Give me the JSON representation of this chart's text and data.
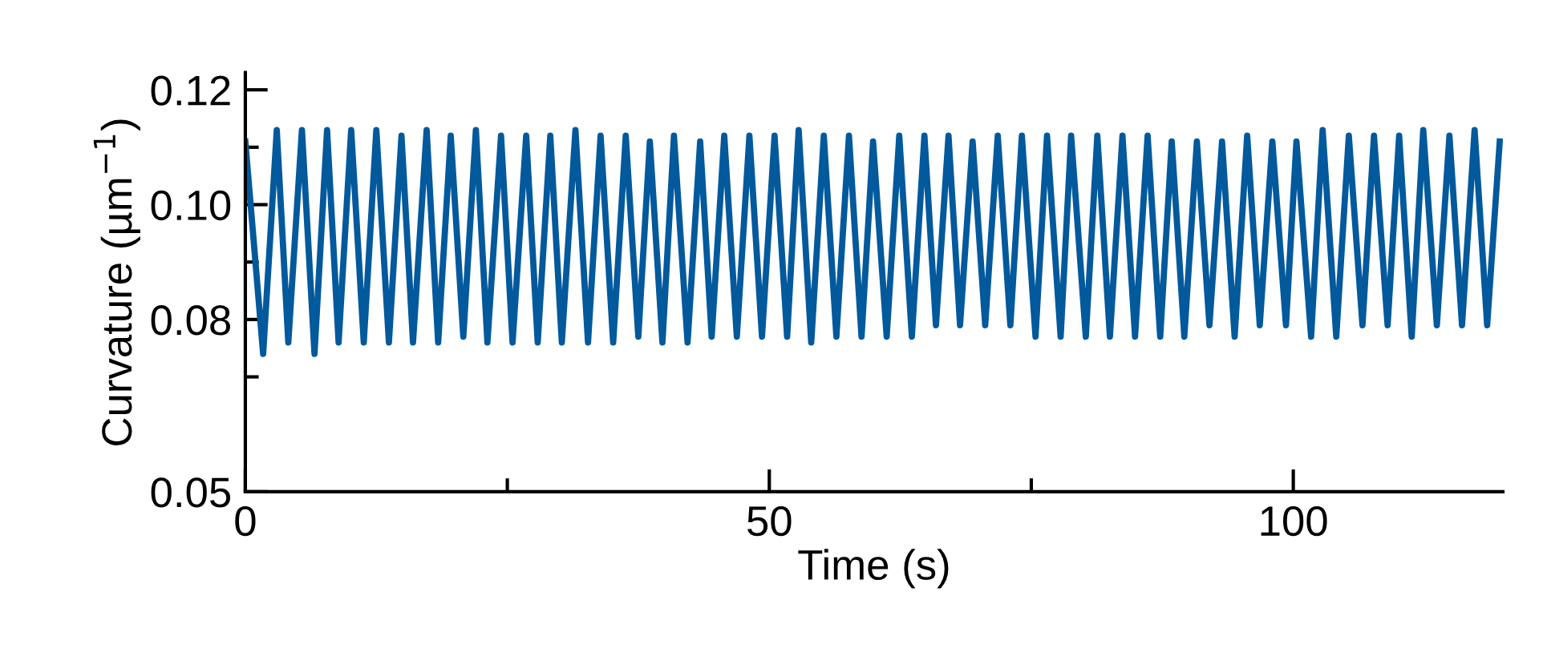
{
  "chart_data": {
    "type": "line",
    "xlabel": "Time (s)",
    "ylabel": "Curvature (µm$^{−1}$)",
    "x": [
      0,
      1.7,
      3.0,
      4.1,
      5.4,
      6.6,
      7.8,
      8.9,
      10.1,
      11.3,
      12.5,
      13.7,
      14.9,
      16.0,
      17.3,
      18.4,
      19.6,
      20.8,
      22.0,
      23.1,
      24.4,
      25.5,
      26.8,
      27.9,
      29.1,
      30.2,
      31.5,
      32.7,
      33.9,
      35.1,
      36.3,
      37.5,
      38.6,
      39.8,
      40.9,
      42.2,
      43.4,
      44.5,
      45.7,
      46.9,
      48.1,
      49.3,
      50.5,
      51.7,
      52.8,
      54.0,
      55.2,
      56.4,
      57.6,
      58.8,
      59.9,
      61.2,
      62.4,
      63.6,
      64.8,
      65.9,
      67.1,
      68.2,
      69.4,
      70.6,
      71.8,
      73.0,
      74.1,
      75.4,
      76.5,
      77.8,
      78.8,
      80.2,
      81.3,
      82.5,
      83.7,
      84.9,
      86.1,
      87.3,
      88.4,
      89.6,
      90.8,
      92.0,
      93.2,
      94.4,
      95.6,
      96.8,
      98.0,
      99.3,
      100.3,
      101.7,
      102.8,
      104.1,
      105.3,
      106.6,
      107.7,
      109.0,
      110.1,
      111.3,
      112.4,
      113.7,
      114.9,
      116.1,
      117.3,
      118.5,
      119.7
    ],
    "series": [
      {
        "color": "#02599c",
        "values": [
          0.111,
          0.074,
          0.113,
          0.076,
          0.113,
          0.074,
          0.113,
          0.076,
          0.113,
          0.076,
          0.113,
          0.076,
          0.112,
          0.076,
          0.113,
          0.076,
          0.112,
          0.077,
          0.113,
          0.076,
          0.112,
          0.076,
          0.112,
          0.076,
          0.112,
          0.076,
          0.113,
          0.076,
          0.112,
          0.076,
          0.112,
          0.077,
          0.111,
          0.076,
          0.112,
          0.076,
          0.111,
          0.077,
          0.112,
          0.077,
          0.112,
          0.077,
          0.112,
          0.077,
          0.113,
          0.076,
          0.112,
          0.077,
          0.112,
          0.077,
          0.111,
          0.077,
          0.112,
          0.077,
          0.112,
          0.079,
          0.112,
          0.079,
          0.111,
          0.079,
          0.112,
          0.079,
          0.112,
          0.077,
          0.112,
          0.077,
          0.112,
          0.077,
          0.112,
          0.077,
          0.112,
          0.077,
          0.112,
          0.077,
          0.111,
          0.077,
          0.111,
          0.079,
          0.111,
          0.077,
          0.112,
          0.079,
          0.111,
          0.079,
          0.111,
          0.077,
          0.113,
          0.077,
          0.112,
          0.079,
          0.112,
          0.079,
          0.112,
          0.077,
          0.113,
          0.079,
          0.112,
          0.079,
          0.113,
          0.079,
          0.111
        ]
      }
    ],
    "xlim": [
      0,
      120
    ],
    "xticks": [
      0,
      {
        "value": 25,
        "label": null
      },
      50,
      {
        "value": 75,
        "label": null
      },
      100
    ],
    "ylim": [
      0.05,
      0.123
    ],
    "yticks": [
      0.05,
      {
        "value": 0.07,
        "label": null
      },
      0.08,
      {
        "value": 0.09,
        "label": null
      },
      {
        "value": 0.1,
        "label": "0.10"
      },
      {
        "value": 0.11,
        "label": null
      },
      0.12
    ],
    "grid": false,
    "legend": false,
    "marker": "none",
    "line_style": "solid"
  }
}
